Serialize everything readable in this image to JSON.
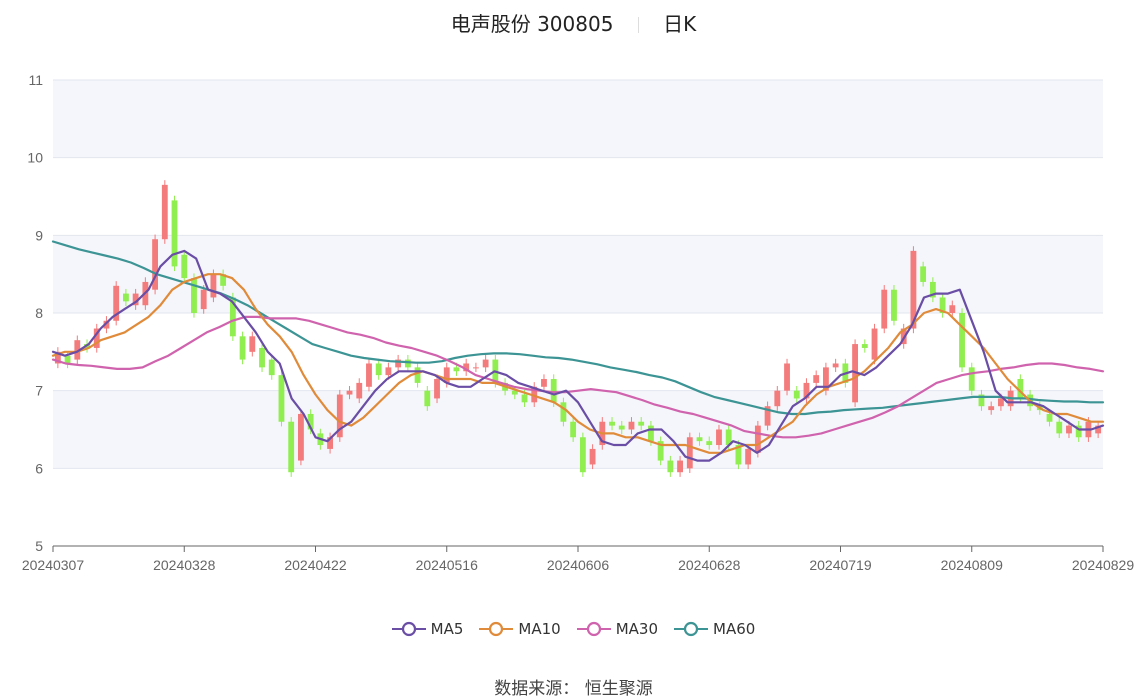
{
  "header": {
    "stock_name": "电声股份 300805",
    "period": "日K"
  },
  "footer": {
    "source_label": "数据来源：",
    "source_value": "恒生聚源"
  },
  "colors": {
    "up": "#f47b7b",
    "down": "#90ee50",
    "ma5": "#6a4ea6",
    "ma10": "#e08b3a",
    "ma30": "#d063ad",
    "ma60": "#3d9494"
  },
  "chart_data": {
    "type": "candlestick",
    "y_ticks": [
      "5",
      "6",
      "7",
      "8",
      "9",
      "10",
      "11"
    ],
    "ylim": [
      5,
      11
    ],
    "x_ticks": [
      "20240307",
      "20240328",
      "20240422",
      "20240516",
      "20240606",
      "20240628",
      "20240719",
      "20240809",
      "20240829"
    ],
    "legend": [
      "MA5",
      "MA10",
      "MA30",
      "MA60"
    ],
    "candles": [
      [
        7.35,
        7.5
      ],
      [
        7.45,
        7.35
      ],
      [
        7.4,
        7.65
      ],
      [
        7.6,
        7.55
      ],
      [
        7.55,
        7.8
      ],
      [
        7.8,
        7.9
      ],
      [
        7.9,
        8.35
      ],
      [
        8.25,
        8.15
      ],
      [
        8.1,
        8.25
      ],
      [
        8.1,
        8.4
      ],
      [
        8.3,
        8.95
      ],
      [
        8.95,
        9.65
      ],
      [
        9.45,
        8.6
      ],
      [
        8.75,
        8.45
      ],
      [
        8.45,
        8.0
      ],
      [
        8.05,
        8.3
      ],
      [
        8.2,
        8.5
      ],
      [
        8.5,
        8.35
      ],
      [
        8.2,
        7.7
      ],
      [
        7.7,
        7.4
      ],
      [
        7.5,
        7.7
      ],
      [
        7.55,
        7.3
      ],
      [
        7.4,
        7.2
      ],
      [
        7.2,
        6.6
      ],
      [
        6.6,
        5.95
      ],
      [
        6.1,
        6.7
      ],
      [
        6.7,
        6.5
      ],
      [
        6.45,
        6.3
      ],
      [
        6.25,
        6.4
      ],
      [
        6.4,
        6.95
      ],
      [
        6.95,
        7.0
      ],
      [
        6.9,
        7.1
      ],
      [
        7.05,
        7.35
      ],
      [
        7.35,
        7.2
      ],
      [
        7.2,
        7.3
      ],
      [
        7.3,
        7.4
      ],
      [
        7.4,
        7.3
      ],
      [
        7.3,
        7.1
      ],
      [
        7.0,
        6.8
      ],
      [
        6.9,
        7.15
      ],
      [
        7.1,
        7.3
      ],
      [
        7.3,
        7.25
      ],
      [
        7.25,
        7.35
      ],
      [
        7.3,
        7.3
      ],
      [
        7.3,
        7.4
      ],
      [
        7.4,
        7.1
      ],
      [
        7.1,
        7.0
      ],
      [
        7.0,
        6.95
      ],
      [
        6.95,
        6.85
      ],
      [
        6.85,
        7.05
      ],
      [
        7.05,
        7.15
      ],
      [
        7.15,
        6.85
      ],
      [
        6.85,
        6.6
      ],
      [
        6.6,
        6.4
      ],
      [
        6.4,
        5.95
      ],
      [
        6.05,
        6.25
      ],
      [
        6.3,
        6.6
      ],
      [
        6.6,
        6.55
      ],
      [
        6.55,
        6.5
      ],
      [
        6.5,
        6.6
      ],
      [
        6.6,
        6.55
      ],
      [
        6.55,
        6.35
      ],
      [
        6.35,
        6.1
      ],
      [
        6.1,
        5.95
      ],
      [
        5.95,
        6.1
      ],
      [
        6.0,
        6.4
      ],
      [
        6.4,
        6.35
      ],
      [
        6.35,
        6.3
      ],
      [
        6.3,
        6.5
      ],
      [
        6.5,
        6.3
      ],
      [
        6.3,
        6.05
      ],
      [
        6.05,
        6.25
      ],
      [
        6.2,
        6.55
      ],
      [
        6.55,
        6.8
      ],
      [
        6.8,
        7.0
      ],
      [
        7.0,
        7.35
      ],
      [
        7.0,
        6.9
      ],
      [
        6.9,
        7.1
      ],
      [
        7.1,
        7.2
      ],
      [
        7.0,
        7.3
      ],
      [
        7.3,
        7.35
      ],
      [
        7.35,
        7.1
      ],
      [
        6.85,
        7.6
      ],
      [
        7.6,
        7.55
      ],
      [
        7.4,
        7.8
      ],
      [
        7.8,
        8.3
      ],
      [
        8.3,
        7.9
      ],
      [
        7.6,
        7.8
      ],
      [
        7.8,
        8.8
      ],
      [
        8.6,
        8.4
      ],
      [
        8.4,
        8.2
      ],
      [
        8.2,
        8.0
      ],
      [
        8.0,
        8.1
      ],
      [
        8.0,
        7.3
      ],
      [
        7.3,
        7.0
      ],
      [
        6.95,
        6.8
      ],
      [
        6.75,
        6.8
      ],
      [
        6.8,
        6.9
      ],
      [
        6.8,
        7.0
      ],
      [
        7.15,
        6.9
      ],
      [
        6.95,
        6.8
      ],
      [
        6.8,
        6.75
      ],
      [
        6.7,
        6.6
      ],
      [
        6.6,
        6.45
      ],
      [
        6.45,
        6.55
      ],
      [
        6.55,
        6.4
      ],
      [
        6.4,
        6.6
      ],
      [
        6.45,
        6.55
      ]
    ],
    "ma5": [
      7.5,
      7.45,
      7.5,
      7.6,
      7.8,
      7.95,
      8.05,
      8.15,
      8.3,
      8.6,
      8.75,
      8.8,
      8.7,
      8.3,
      8.25,
      8.15,
      7.95,
      7.75,
      7.5,
      7.35,
      6.9,
      6.7,
      6.4,
      6.35,
      6.5,
      6.6,
      6.8,
      7.0,
      7.15,
      7.25,
      7.25,
      7.25,
      7.2,
      7.1,
      7.05,
      7.05,
      7.15,
      7.25,
      7.2,
      7.1,
      7.05,
      7.0,
      6.95,
      7.0,
      6.85,
      6.6,
      6.35,
      6.3,
      6.3,
      6.45,
      6.5,
      6.5,
      6.35,
      6.15,
      6.1,
      6.1,
      6.2,
      6.35,
      6.3,
      6.2,
      6.3,
      6.55,
      6.8,
      6.9,
      7.05,
      7.05,
      7.2,
      7.25,
      7.2,
      7.3,
      7.45,
      7.6,
      7.85,
      8.2,
      8.25,
      8.25,
      8.3,
      7.9,
      7.5,
      7.0,
      6.85,
      6.85,
      6.85,
      6.8,
      6.7,
      6.6,
      6.5,
      6.5,
      6.55
    ],
    "ma10": [
      7.45,
      7.5,
      7.5,
      7.55,
      7.65,
      7.7,
      7.75,
      7.85,
      7.95,
      8.1,
      8.3,
      8.4,
      8.45,
      8.5,
      8.5,
      8.45,
      8.3,
      8.05,
      7.85,
      7.7,
      7.5,
      7.2,
      6.95,
      6.75,
      6.6,
      6.55,
      6.65,
      6.8,
      6.95,
      7.1,
      7.2,
      7.25,
      7.2,
      7.15,
      7.15,
      7.15,
      7.1,
      7.1,
      7.05,
      7.0,
      6.95,
      6.9,
      6.85,
      6.75,
      6.6,
      6.5,
      6.45,
      6.45,
      6.4,
      6.4,
      6.35,
      6.3,
      6.3,
      6.3,
      6.25,
      6.2,
      6.2,
      6.25,
      6.3,
      6.3,
      6.4,
      6.5,
      6.6,
      6.8,
      6.95,
      7.05,
      7.1,
      7.15,
      7.25,
      7.4,
      7.55,
      7.75,
      7.85,
      8.0,
      8.05,
      8.0,
      7.85,
      7.7,
      7.55,
      7.35,
      7.15,
      7.0,
      6.85,
      6.75,
      6.7,
      6.7,
      6.65,
      6.6,
      6.6
    ],
    "ma30": [
      7.4,
      7.35,
      7.33,
      7.32,
      7.3,
      7.28,
      7.28,
      7.3,
      7.38,
      7.45,
      7.55,
      7.65,
      7.75,
      7.82,
      7.9,
      7.95,
      7.95,
      7.93,
      7.93,
      7.93,
      7.9,
      7.85,
      7.8,
      7.75,
      7.72,
      7.68,
      7.62,
      7.58,
      7.55,
      7.5,
      7.45,
      7.38,
      7.3,
      7.2,
      7.15,
      7.1,
      7.05,
      7.02,
      7.0,
      6.98,
      6.98,
      7.0,
      7.02,
      7.0,
      6.98,
      6.93,
      6.88,
      6.82,
      6.78,
      6.73,
      6.7,
      6.65,
      6.6,
      6.55,
      6.48,
      6.45,
      6.42,
      6.4,
      6.4,
      6.42,
      6.45,
      6.5,
      6.55,
      6.6,
      6.65,
      6.72,
      6.8,
      6.9,
      7.0,
      7.1,
      7.15,
      7.2,
      7.23,
      7.25,
      7.28,
      7.3,
      7.33,
      7.35,
      7.35,
      7.33,
      7.3,
      7.28,
      7.25
    ],
    "ma60": [
      8.92,
      8.87,
      8.82,
      8.78,
      8.74,
      8.7,
      8.65,
      8.58,
      8.5,
      8.45,
      8.4,
      8.35,
      8.3,
      8.25,
      8.18,
      8.1,
      8.0,
      7.9,
      7.8,
      7.7,
      7.6,
      7.55,
      7.5,
      7.45,
      7.42,
      7.4,
      7.38,
      7.37,
      7.36,
      7.36,
      7.38,
      7.42,
      7.45,
      7.47,
      7.48,
      7.48,
      7.47,
      7.45,
      7.43,
      7.42,
      7.4,
      7.37,
      7.34,
      7.3,
      7.27,
      7.24,
      7.2,
      7.17,
      7.12,
      7.05,
      6.98,
      6.92,
      6.88,
      6.84,
      6.8,
      6.76,
      6.72,
      6.7,
      6.7,
      6.72,
      6.73,
      6.75,
      6.76,
      6.77,
      6.78,
      6.8,
      6.82,
      6.84,
      6.86,
      6.88,
      6.9,
      6.92,
      6.92,
      6.92,
      6.9,
      6.9,
      6.88,
      6.87,
      6.86,
      6.86,
      6.85,
      6.85
    ]
  }
}
